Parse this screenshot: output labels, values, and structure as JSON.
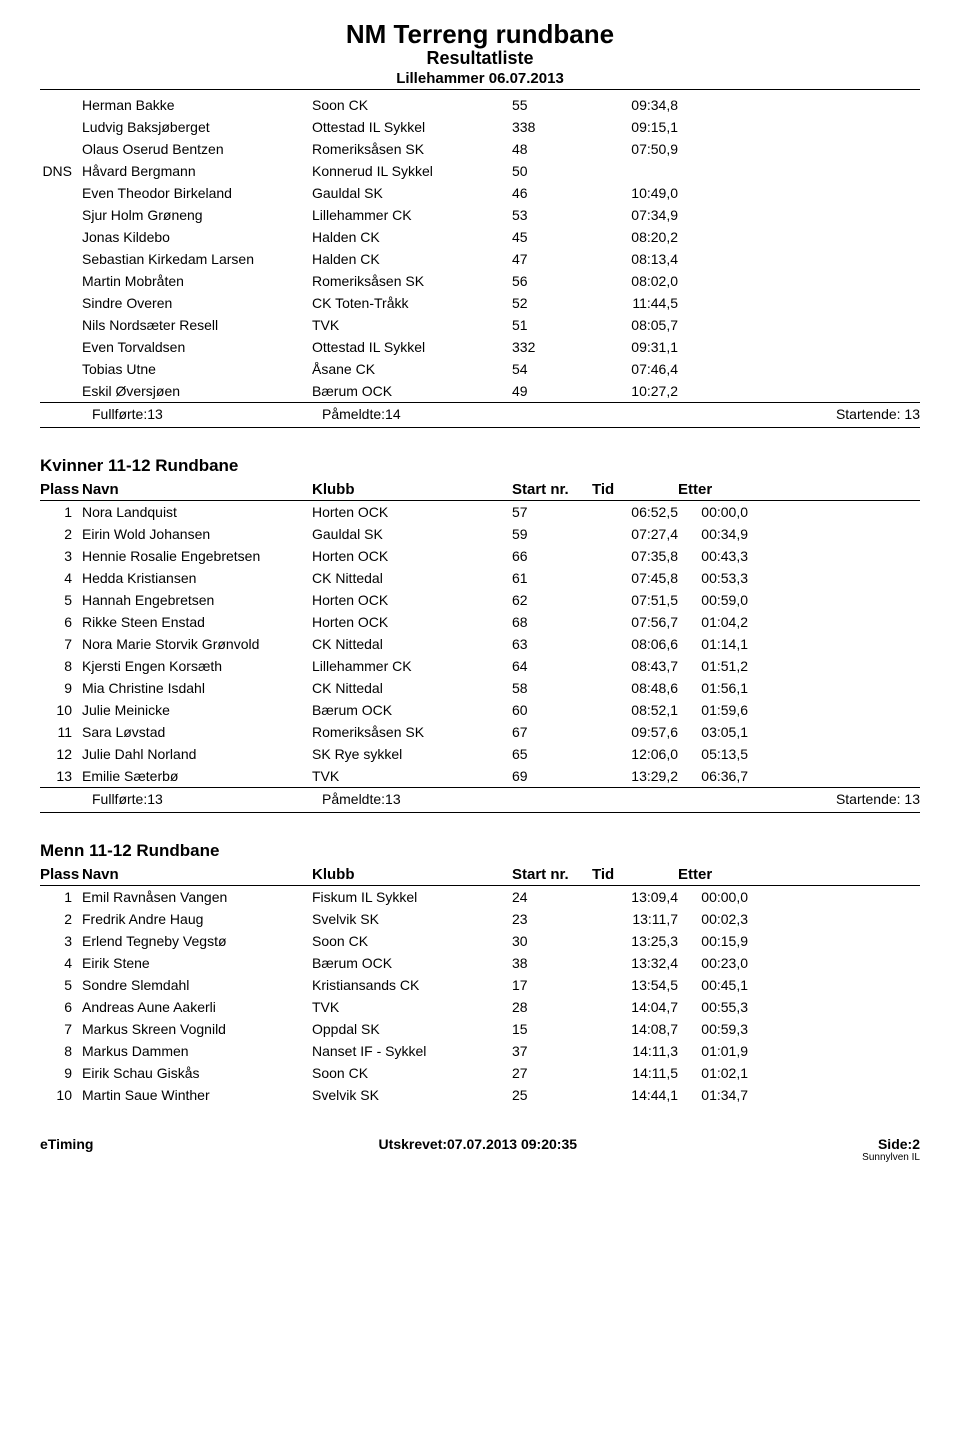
{
  "header": {
    "title": "NM Terreng rundbane",
    "subtitle": "Resultatliste",
    "date": "Lillehammer 06.07.2013"
  },
  "columns": {
    "plass": "Plass",
    "navn": "Navn",
    "klubb": "Klubb",
    "start": "Start nr.",
    "tid": "Tid",
    "etter": "Etter"
  },
  "section1": {
    "rows": [
      {
        "plass": "",
        "navn": "Herman Bakke",
        "klubb": "Soon CK",
        "start": "55",
        "tid": "09:34,8",
        "etter": ""
      },
      {
        "plass": "",
        "navn": "Ludvig Baksjøberget",
        "klubb": "Ottestad IL Sykkel",
        "start": "338",
        "tid": "09:15,1",
        "etter": ""
      },
      {
        "plass": "",
        "navn": "Olaus Oserud Bentzen",
        "klubb": "Romeriksåsen SK",
        "start": "48",
        "tid": "07:50,9",
        "etter": ""
      },
      {
        "plass": "DNS",
        "navn": "Håvard Bergmann",
        "klubb": "Konnerud IL Sykkel",
        "start": "50",
        "tid": "",
        "etter": ""
      },
      {
        "plass": "",
        "navn": "Even Theodor Birkeland",
        "klubb": "Gauldal SK",
        "start": "46",
        "tid": "10:49,0",
        "etter": ""
      },
      {
        "plass": "",
        "navn": "Sjur Holm Grøneng",
        "klubb": "Lillehammer CK",
        "start": "53",
        "tid": "07:34,9",
        "etter": ""
      },
      {
        "plass": "",
        "navn": "Jonas Kildebo",
        "klubb": "Halden CK",
        "start": "45",
        "tid": "08:20,2",
        "etter": ""
      },
      {
        "plass": "",
        "navn": "Sebastian Kirkedam Larsen",
        "klubb": "Halden CK",
        "start": "47",
        "tid": "08:13,4",
        "etter": ""
      },
      {
        "plass": "",
        "navn": "Martin Mobråten",
        "klubb": "Romeriksåsen SK",
        "start": "56",
        "tid": "08:02,0",
        "etter": ""
      },
      {
        "plass": "",
        "navn": "Sindre Overen",
        "klubb": "CK Toten-Tråkk",
        "start": "52",
        "tid": "11:44,5",
        "etter": ""
      },
      {
        "plass": "",
        "navn": "Nils Nordsæter Resell",
        "klubb": "TVK",
        "start": "51",
        "tid": "08:05,7",
        "etter": ""
      },
      {
        "plass": "",
        "navn": "Even Torvaldsen",
        "klubb": "Ottestad IL Sykkel",
        "start": "332",
        "tid": "09:31,1",
        "etter": ""
      },
      {
        "plass": "",
        "navn": "Tobias Utne",
        "klubb": "Åsane CK",
        "start": "54",
        "tid": "07:46,4",
        "etter": ""
      },
      {
        "plass": "",
        "navn": "Eskil Øversjøen",
        "klubb": "Bærum OCK",
        "start": "49",
        "tid": "10:27,2",
        "etter": ""
      }
    ],
    "summary": {
      "fullforte": "Fullførte:13",
      "pameldte": "Påmeldte:14",
      "startende": "Startende: 13"
    }
  },
  "section2": {
    "title": "Kvinner 11-12 Rundbane",
    "rows": [
      {
        "plass": "1",
        "navn": "Nora Landquist",
        "klubb": "Horten OCK",
        "start": "57",
        "tid": "06:52,5",
        "etter": "00:00,0"
      },
      {
        "plass": "2",
        "navn": "Eirin Wold Johansen",
        "klubb": "Gauldal SK",
        "start": "59",
        "tid": "07:27,4",
        "etter": "00:34,9"
      },
      {
        "plass": "3",
        "navn": "Hennie Rosalie Engebretsen",
        "klubb": "Horten OCK",
        "start": "66",
        "tid": "07:35,8",
        "etter": "00:43,3"
      },
      {
        "plass": "4",
        "navn": "Hedda Kristiansen",
        "klubb": "CK Nittedal",
        "start": "61",
        "tid": "07:45,8",
        "etter": "00:53,3"
      },
      {
        "plass": "5",
        "navn": "Hannah Engebretsen",
        "klubb": "Horten OCK",
        "start": "62",
        "tid": "07:51,5",
        "etter": "00:59,0"
      },
      {
        "plass": "6",
        "navn": "Rikke Steen Enstad",
        "klubb": "Horten OCK",
        "start": "68",
        "tid": "07:56,7",
        "etter": "01:04,2"
      },
      {
        "plass": "7",
        "navn": "Nora Marie Storvik Grønvold",
        "klubb": "CK Nittedal",
        "start": "63",
        "tid": "08:06,6",
        "etter": "01:14,1"
      },
      {
        "plass": "8",
        "navn": "Kjersti Engen Korsæth",
        "klubb": "Lillehammer CK",
        "start": "64",
        "tid": "08:43,7",
        "etter": "01:51,2"
      },
      {
        "plass": "9",
        "navn": "Mia Christine Isdahl",
        "klubb": "CK Nittedal",
        "start": "58",
        "tid": "08:48,6",
        "etter": "01:56,1"
      },
      {
        "plass": "10",
        "navn": "Julie Meinicke",
        "klubb": "Bærum OCK",
        "start": "60",
        "tid": "08:52,1",
        "etter": "01:59,6"
      },
      {
        "plass": "11",
        "navn": "Sara Løvstad",
        "klubb": "Romeriksåsen SK",
        "start": "67",
        "tid": "09:57,6",
        "etter": "03:05,1"
      },
      {
        "plass": "12",
        "navn": "Julie Dahl Norland",
        "klubb": "SK Rye sykkel",
        "start": "65",
        "tid": "12:06,0",
        "etter": "05:13,5"
      },
      {
        "plass": "13",
        "navn": "Emilie Sæterbø",
        "klubb": "TVK",
        "start": "69",
        "tid": "13:29,2",
        "etter": "06:36,7"
      }
    ],
    "summary": {
      "fullforte": "Fullførte:13",
      "pameldte": "Påmeldte:13",
      "startende": "Startende: 13"
    }
  },
  "section3": {
    "title": "Menn 11-12 Rundbane",
    "rows": [
      {
        "plass": "1",
        "navn": "Emil Ravnåsen Vangen",
        "klubb": "Fiskum IL Sykkel",
        "start": "24",
        "tid": "13:09,4",
        "etter": "00:00,0"
      },
      {
        "plass": "2",
        "navn": "Fredrik Andre Haug",
        "klubb": "Svelvik SK",
        "start": "23",
        "tid": "13:11,7",
        "etter": "00:02,3"
      },
      {
        "plass": "3",
        "navn": "Erlend Tegneby Vegstø",
        "klubb": "Soon CK",
        "start": "30",
        "tid": "13:25,3",
        "etter": "00:15,9"
      },
      {
        "plass": "4",
        "navn": "Eirik Stene",
        "klubb": "Bærum OCK",
        "start": "38",
        "tid": "13:32,4",
        "etter": "00:23,0"
      },
      {
        "plass": "5",
        "navn": "Sondre Slemdahl",
        "klubb": "Kristiansands CK",
        "start": "17",
        "tid": "13:54,5",
        "etter": "00:45,1"
      },
      {
        "plass": "6",
        "navn": "Andreas Aune Aakerli",
        "klubb": "TVK",
        "start": "28",
        "tid": "14:04,7",
        "etter": "00:55,3"
      },
      {
        "plass": "7",
        "navn": "Markus Skreen Vognild",
        "klubb": "Oppdal SK",
        "start": "15",
        "tid": "14:08,7",
        "etter": "00:59,3"
      },
      {
        "plass": "8",
        "navn": "Markus Dammen",
        "klubb": "Nanset IF - Sykkel",
        "start": "37",
        "tid": "14:11,3",
        "etter": "01:01,9"
      },
      {
        "plass": "9",
        "navn": "Eirik Schau Giskås",
        "klubb": "Soon CK",
        "start": "27",
        "tid": "14:11,5",
        "etter": "01:02,1"
      },
      {
        "plass": "10",
        "navn": "Martin Saue Winther",
        "klubb": "Svelvik SK",
        "start": "25",
        "tid": "14:44,1",
        "etter": "01:34,7"
      }
    ]
  },
  "footer": {
    "left": "eTiming",
    "center": "Utskrevet:07.07.2013 09:20:35",
    "right": "Side:2",
    "small": "Sunnylven IL"
  }
}
